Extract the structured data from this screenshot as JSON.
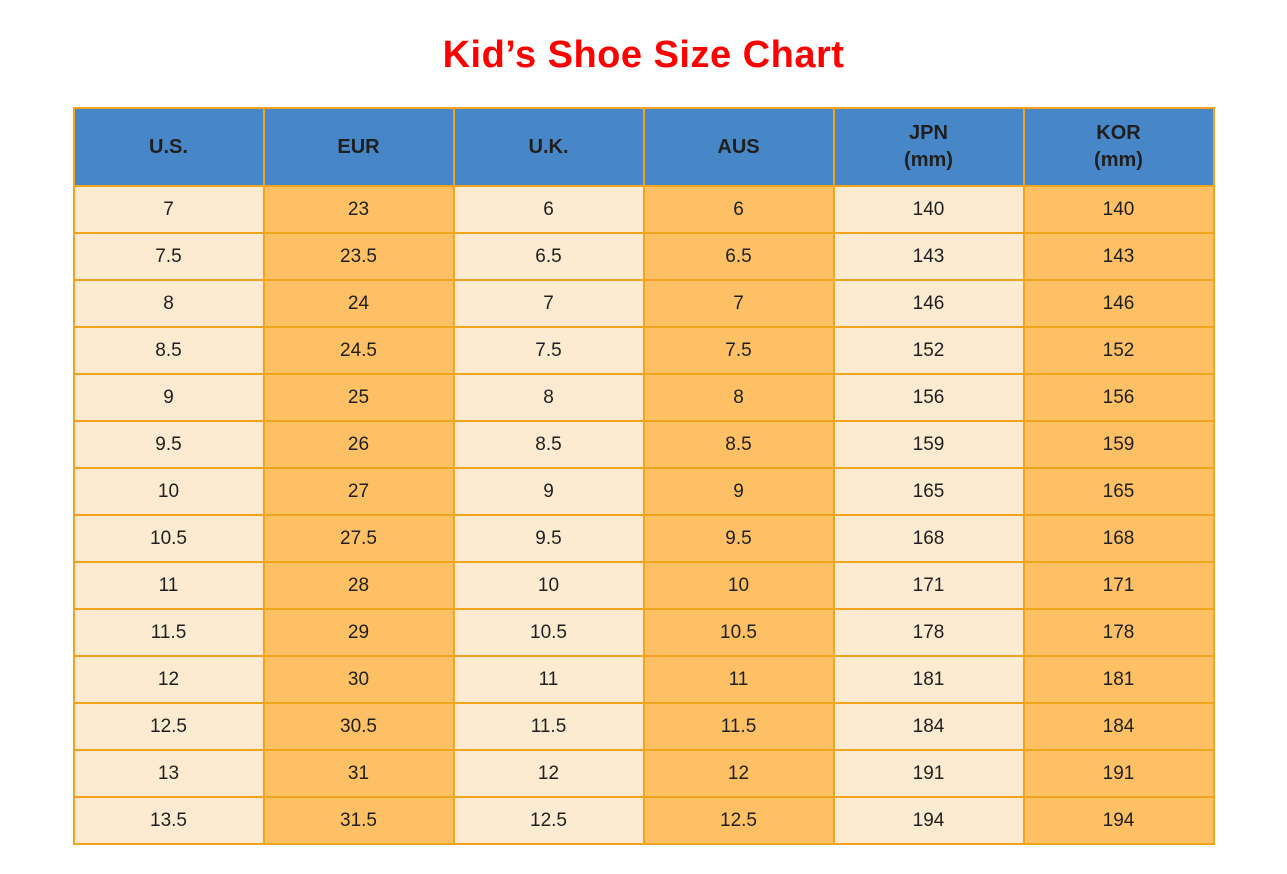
{
  "page_title": "Kid’s Shoe Size Chart",
  "colors": {
    "title_red": "#FE0000",
    "header_blue": "#4887C7",
    "column_cream": "#FCEBD1",
    "column_orange": "#FEC064",
    "grid_orange": "#F2A51C",
    "cell_text": "#1F1F1F"
  },
  "chart_data": {
    "type": "table",
    "title": "Kid’s Shoe Size Chart",
    "legend_position": "none",
    "grid": true,
    "columns": [
      {
        "key": "us",
        "label": "U.S.",
        "sub": ""
      },
      {
        "key": "eur",
        "label": "EUR",
        "sub": ""
      },
      {
        "key": "uk",
        "label": "U.K.",
        "sub": ""
      },
      {
        "key": "aus",
        "label": "AUS",
        "sub": ""
      },
      {
        "key": "jpn",
        "label": "JPN",
        "sub": "(mm)"
      },
      {
        "key": "kor",
        "label": "KOR",
        "sub": "(mm)"
      }
    ],
    "rows": [
      [
        "7",
        "23",
        "6",
        "6",
        "140",
        "140"
      ],
      [
        "7.5",
        "23.5",
        "6.5",
        "6.5",
        "143",
        "143"
      ],
      [
        "8",
        "24",
        "7",
        "7",
        "146",
        "146"
      ],
      [
        "8.5",
        "24.5",
        "7.5",
        "7.5",
        "152",
        "152"
      ],
      [
        "9",
        "25",
        "8",
        "8",
        "156",
        "156"
      ],
      [
        "9.5",
        "26",
        "8.5",
        "8.5",
        "159",
        "159"
      ],
      [
        "10",
        "27",
        "9",
        "9",
        "165",
        "165"
      ],
      [
        "10.5",
        "27.5",
        "9.5",
        "9.5",
        "168",
        "168"
      ],
      [
        "11",
        "28",
        "10",
        "10",
        "171",
        "171"
      ],
      [
        "11.5",
        "29",
        "10.5",
        "10.5",
        "178",
        "178"
      ],
      [
        "12",
        "30",
        "11",
        "11",
        "181",
        "181"
      ],
      [
        "12.5",
        "30.5",
        "11.5",
        "11.5",
        "184",
        "184"
      ],
      [
        "13",
        "31",
        "12",
        "12",
        "191",
        "191"
      ],
      [
        "13.5",
        "31.5",
        "12.5",
        "12.5",
        "194",
        "194"
      ]
    ]
  }
}
